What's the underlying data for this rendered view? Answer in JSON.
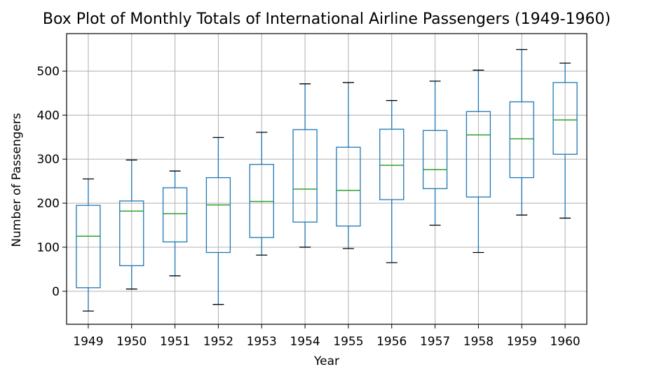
{
  "chart_data": {
    "type": "box",
    "title": "Box Plot of Monthly Totals of International Airline Passengers (1949-1960)",
    "xlabel": "Year",
    "ylabel": "Number of Passengers",
    "ylim": [
      -75,
      585
    ],
    "yticks": [
      0,
      100,
      200,
      300,
      400,
      500
    ],
    "grid": true,
    "legend": "none",
    "colors": {
      "box": "#1f77b4",
      "median": "#2ca02c",
      "cap": "#000000",
      "grid": "#b0b0b0",
      "frame": "#000000"
    },
    "categories": [
      "1949",
      "1950",
      "1951",
      "1952",
      "1953",
      "1954",
      "1955",
      "1956",
      "1957",
      "1958",
      "1959",
      "1960"
    ],
    "boxes": [
      {
        "whislo": -45,
        "q1": 8,
        "med": 125,
        "q3": 195,
        "whishi": 255
      },
      {
        "whislo": 5,
        "q1": 58,
        "med": 182,
        "q3": 205,
        "whishi": 298
      },
      {
        "whislo": 35,
        "q1": 112,
        "med": 176,
        "q3": 235,
        "whishi": 273
      },
      {
        "whislo": -30,
        "q1": 88,
        "med": 196,
        "q3": 258,
        "whishi": 349
      },
      {
        "whislo": 82,
        "q1": 122,
        "med": 204,
        "q3": 288,
        "whishi": 361
      },
      {
        "whislo": 100,
        "q1": 157,
        "med": 232,
        "q3": 367,
        "whishi": 471
      },
      {
        "whislo": 97,
        "q1": 148,
        "med": 229,
        "q3": 327,
        "whishi": 474
      },
      {
        "whislo": 65,
        "q1": 208,
        "med": 286,
        "q3": 368,
        "whishi": 433
      },
      {
        "whislo": 150,
        "q1": 233,
        "med": 276,
        "q3": 365,
        "whishi": 477
      },
      {
        "whislo": 88,
        "q1": 214,
        "med": 355,
        "q3": 408,
        "whishi": 502
      },
      {
        "whislo": 173,
        "q1": 258,
        "med": 346,
        "q3": 430,
        "whishi": 549
      },
      {
        "whislo": 166,
        "q1": 311,
        "med": 389,
        "q3": 474,
        "whishi": 518
      }
    ]
  }
}
